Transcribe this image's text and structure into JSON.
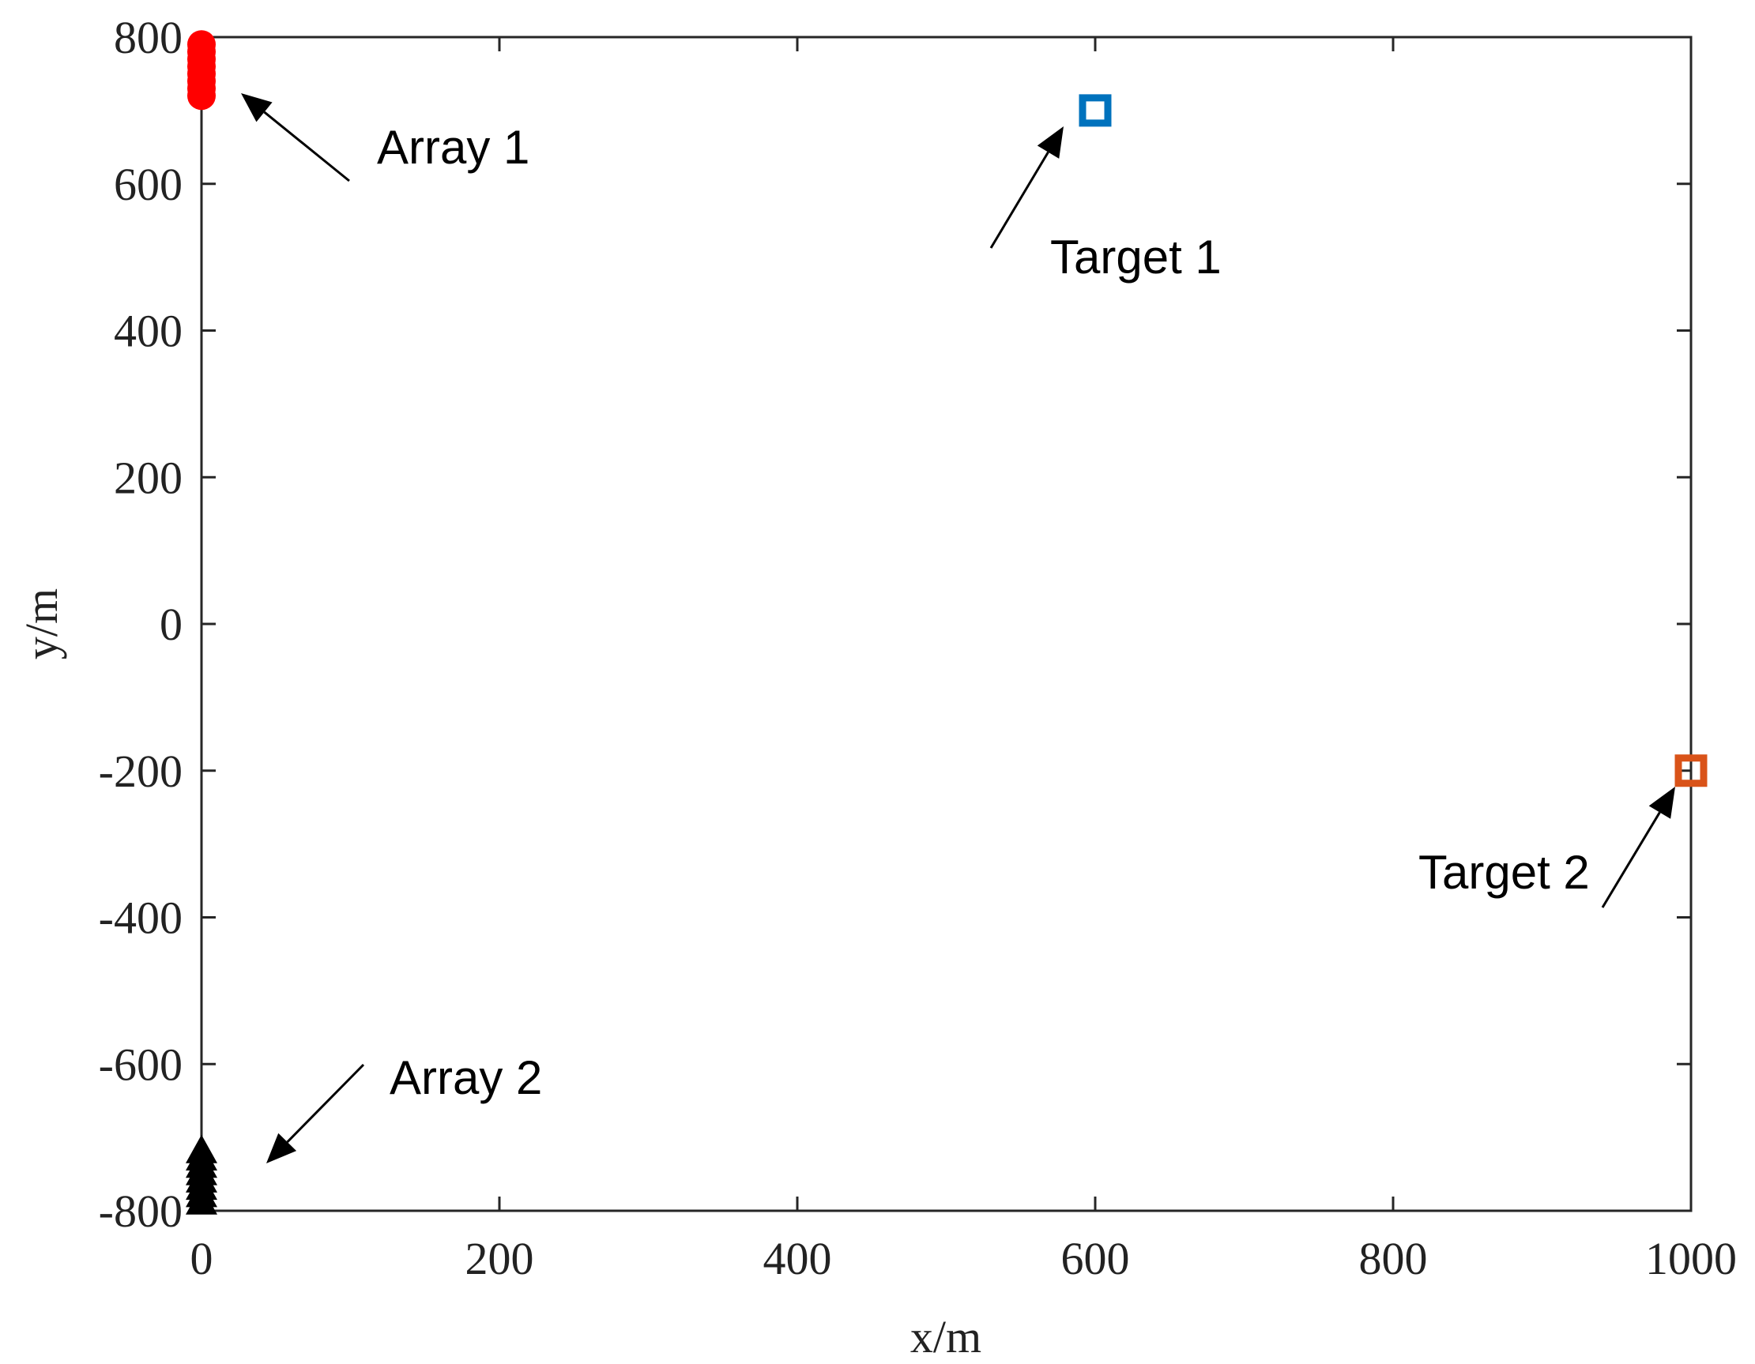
{
  "chart_data": {
    "type": "scatter",
    "xlabel": "x/m",
    "ylabel": "y/m",
    "xlim": [
      0,
      1000
    ],
    "ylim": [
      -800,
      800
    ],
    "xticks": [
      0,
      200,
      400,
      600,
      800,
      1000
    ],
    "yticks": [
      -800,
      -600,
      -400,
      -200,
      0,
      200,
      400,
      600,
      800
    ],
    "series": [
      {
        "color": "#ff0000",
        "marker": "circle",
        "filled": true,
        "x": [
          0,
          0,
          0,
          0,
          0,
          0,
          0,
          0
        ],
        "values": [
          720,
          730,
          740,
          750,
          760,
          770,
          780,
          790
        ]
      },
      {
        "color": "#000000",
        "marker": "triangle",
        "filled": true,
        "x": [
          0,
          0,
          0,
          0,
          0,
          0,
          0,
          0
        ],
        "values": [
          -790,
          -780,
          -770,
          -760,
          -750,
          -740,
          -730,
          -720
        ]
      },
      {
        "color": "#0072bd",
        "marker": "square",
        "filled": false,
        "x": [
          600
        ],
        "values": [
          700
        ]
      },
      {
        "color": "#d95319",
        "marker": "square",
        "filled": false,
        "x": [
          1000
        ],
        "values": [
          -200
        ]
      }
    ],
    "annotations": [
      "Array 1",
      "Target 1",
      "Target 2",
      "Array 2"
    ]
  }
}
